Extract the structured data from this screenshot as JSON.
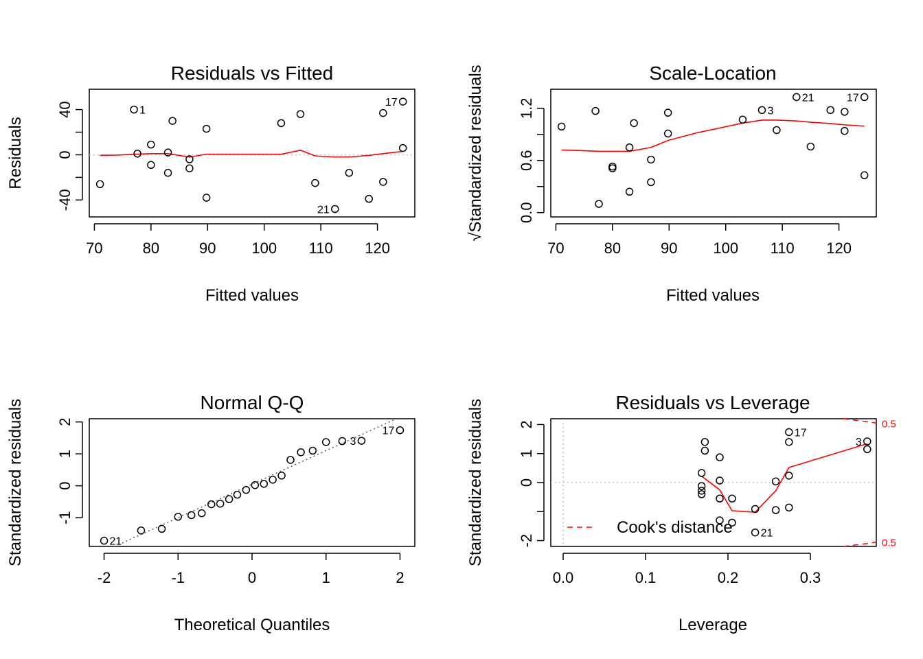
{
  "chart_data": [
    {
      "id": "rvf",
      "type": "scatter",
      "title": "Residuals vs Fitted",
      "xlabel": "Fitted values",
      "ylabel": "Residuals",
      "xlim": [
        69.1,
        126.6
      ],
      "ylim": [
        -55.0,
        58.0
      ],
      "xticks": [
        70,
        80,
        90,
        100,
        110,
        120
      ],
      "xtick_labels": [
        "70",
        "80",
        "90",
        "100",
        "110",
        "120"
      ],
      "yticks": [
        40,
        20,
        0,
        -20,
        -40
      ],
      "ytick_labels": [
        "40",
        "",
        "0",
        "",
        "-40"
      ],
      "refline": {
        "type": "h",
        "value": 0,
        "style": "gray-dotted"
      },
      "points": [
        {
          "x": 71.0,
          "y": -26
        },
        {
          "x": 77.0,
          "y": 40
        },
        {
          "x": 77.6,
          "y": 1
        },
        {
          "x": 80.0,
          "y": 9
        },
        {
          "x": 80.0,
          "y": -9
        },
        {
          "x": 83.0,
          "y": 2
        },
        {
          "x": 83.0,
          "y": -16
        },
        {
          "x": 83.8,
          "y": 30
        },
        {
          "x": 86.8,
          "y": -4
        },
        {
          "x": 86.8,
          "y": -12
        },
        {
          "x": 89.8,
          "y": 23
        },
        {
          "x": 89.8,
          "y": -38
        },
        {
          "x": 103.0,
          "y": 28
        },
        {
          "x": 106.4,
          "y": 36
        },
        {
          "x": 109.0,
          "y": -25
        },
        {
          "x": 112.5,
          "y": -48
        },
        {
          "x": 115.0,
          "y": -16
        },
        {
          "x": 118.5,
          "y": -39
        },
        {
          "x": 121.0,
          "y": 37
        },
        {
          "x": 121.0,
          "y": -24
        },
        {
          "x": 124.5,
          "y": 47
        },
        {
          "x": 124.5,
          "y": 6
        }
      ],
      "point_labels": [
        {
          "text": "1",
          "x": 77.0,
          "y": 40,
          "side": "right"
        },
        {
          "text": "17",
          "x": 124.5,
          "y": 47,
          "side": "left"
        },
        {
          "text": "21",
          "x": 112.5,
          "y": -48,
          "side": "left"
        }
      ],
      "smooth": {
        "x": [
          71.0,
          74,
          77,
          80,
          83,
          86.8,
          89.8,
          95,
          103,
          106.4,
          109,
          112.5,
          115,
          118.5,
          121,
          124.5
        ],
        "y": [
          -0.5,
          -0.3,
          0.5,
          1,
          1,
          -2,
          0.5,
          0.5,
          0.5,
          4,
          -1,
          -2,
          -2,
          -0.5,
          1,
          3
        ]
      }
    },
    {
      "id": "sl",
      "type": "scatter",
      "title": "Scale-Location",
      "xlabel": "Fitted values",
      "ylabel": "Standardized residuals",
      "ylabel_prefix": "√",
      "xlim": [
        69.1,
        126.6
      ],
      "ylim": [
        -0.05,
        1.42
      ],
      "xticks": [
        70,
        80,
        90,
        100,
        110,
        120
      ],
      "xtick_labels": [
        "70",
        "80",
        "90",
        "100",
        "110",
        "120"
      ],
      "yticks": [
        0.0,
        0.3,
        0.6,
        0.9,
        1.2
      ],
      "ytick_labels": [
        "0.0",
        "",
        "0.6",
        "",
        "1.2"
      ],
      "points": [
        {
          "x": 71.0,
          "y": 0.99
        },
        {
          "x": 77.0,
          "y": 1.17
        },
        {
          "x": 77.6,
          "y": 0.1
        },
        {
          "x": 80.0,
          "y": 0.53
        },
        {
          "x": 80.0,
          "y": 0.51
        },
        {
          "x": 83.0,
          "y": 0.75
        },
        {
          "x": 83.0,
          "y": 0.24
        },
        {
          "x": 83.8,
          "y": 1.03
        },
        {
          "x": 86.8,
          "y": 0.61
        },
        {
          "x": 86.8,
          "y": 0.35
        },
        {
          "x": 89.8,
          "y": 1.15
        },
        {
          "x": 89.8,
          "y": 0.91
        },
        {
          "x": 103.0,
          "y": 1.07
        },
        {
          "x": 106.4,
          "y": 1.18
        },
        {
          "x": 109.0,
          "y": 0.95
        },
        {
          "x": 112.5,
          "y": 1.33
        },
        {
          "x": 115.0,
          "y": 0.76
        },
        {
          "x": 118.5,
          "y": 1.18
        },
        {
          "x": 121.0,
          "y": 1.16
        },
        {
          "x": 121.0,
          "y": 0.94
        },
        {
          "x": 124.5,
          "y": 1.33
        },
        {
          "x": 124.5,
          "y": 0.43
        }
      ],
      "point_labels": [
        {
          "text": "3",
          "x": 106.4,
          "y": 1.18,
          "side": "right"
        },
        {
          "text": "21",
          "x": 112.5,
          "y": 1.33,
          "side": "right"
        },
        {
          "text": "17",
          "x": 124.5,
          "y": 1.33,
          "side": "left"
        }
      ],
      "smooth": {
        "x": [
          71.0,
          74,
          77.6,
          80,
          83,
          86.8,
          89.8,
          95,
          103,
          106.4,
          109,
          112.5,
          115,
          118.5,
          121,
          124.5
        ],
        "y": [
          0.72,
          0.715,
          0.705,
          0.705,
          0.705,
          0.75,
          0.83,
          0.92,
          1.03,
          1.065,
          1.065,
          1.055,
          1.04,
          1.025,
          1.01,
          0.995
        ]
      }
    },
    {
      "id": "qq",
      "type": "scatter",
      "title": "Normal Q-Q",
      "xlabel": "Theoretical Quantiles",
      "ylabel": "Standardized residuals",
      "xlim": [
        -2.2,
        2.2
      ],
      "ylim": [
        -1.9,
        2.1
      ],
      "xticks": [
        -2,
        -1,
        0,
        1,
        2
      ],
      "xtick_labels": [
        "-2",
        "-1",
        "0",
        "1",
        "2"
      ],
      "yticks": [
        2,
        1,
        0,
        -1
      ],
      "ytick_labels": [
        "2",
        "1",
        "0",
        "-1"
      ],
      "refline": {
        "type": "abline",
        "intercept": 0.05,
        "slope": 1.05,
        "style": "gray-dotted"
      },
      "points": [
        {
          "x": -2.0,
          "y": -1.72
        },
        {
          "x": -1.5,
          "y": -1.4
        },
        {
          "x": -1.22,
          "y": -1.35
        },
        {
          "x": -1.0,
          "y": -0.97
        },
        {
          "x": -0.82,
          "y": -0.92
        },
        {
          "x": -0.68,
          "y": -0.86
        },
        {
          "x": -0.55,
          "y": -0.58
        },
        {
          "x": -0.43,
          "y": -0.56
        },
        {
          "x": -0.31,
          "y": -0.42
        },
        {
          "x": -0.2,
          "y": -0.28
        },
        {
          "x": -0.08,
          "y": -0.13
        },
        {
          "x": 0.04,
          "y": 0.02
        },
        {
          "x": 0.16,
          "y": 0.06
        },
        {
          "x": 0.28,
          "y": 0.19
        },
        {
          "x": 0.4,
          "y": 0.32
        },
        {
          "x": 0.52,
          "y": 0.81
        },
        {
          "x": 0.66,
          "y": 1.05
        },
        {
          "x": 0.82,
          "y": 1.1
        },
        {
          "x": 1.0,
          "y": 1.37
        },
        {
          "x": 1.22,
          "y": 1.4
        },
        {
          "x": 1.48,
          "y": 1.41
        },
        {
          "x": 2.0,
          "y": 1.74
        }
      ],
      "point_labels": [
        {
          "text": "21",
          "x": -2.0,
          "y": -1.72,
          "side": "right"
        },
        {
          "text": "3",
          "x": 1.48,
          "y": 1.41,
          "side": "left"
        },
        {
          "text": "17",
          "x": 2.0,
          "y": 1.74,
          "side": "left"
        }
      ]
    },
    {
      "id": "rvl",
      "type": "scatter",
      "title": "Residuals vs Leverage",
      "xlabel": "Leverage",
      "ylabel": "Standardized residuals",
      "xlim": [
        -0.015,
        0.38
      ],
      "ylim": [
        -2.2,
        2.2
      ],
      "xticks": [
        0.0,
        0.1,
        0.2,
        0.3
      ],
      "xtick_labels": [
        "0.0",
        "0.1",
        "0.2",
        "0.3"
      ],
      "yticks": [
        2,
        1,
        0,
        -1,
        -2
      ],
      "ytick_labels": [
        "2",
        "1",
        "0",
        "",
        "-2"
      ],
      "reflines": [
        {
          "type": "h",
          "value": 0,
          "style": "gray-dotted"
        },
        {
          "type": "v",
          "value": 0,
          "style": "gray-dotted"
        }
      ],
      "points": [
        {
          "x": 0.168,
          "y": 0.33
        },
        {
          "x": 0.168,
          "y": -0.12
        },
        {
          "x": 0.168,
          "y": -0.4
        },
        {
          "x": 0.168,
          "y": -0.28
        },
        {
          "x": 0.172,
          "y": 1.4
        },
        {
          "x": 0.172,
          "y": 1.1
        },
        {
          "x": 0.19,
          "y": 0.87
        },
        {
          "x": 0.19,
          "y": 0.07
        },
        {
          "x": 0.19,
          "y": -0.55
        },
        {
          "x": 0.19,
          "y": -1.3
        },
        {
          "x": 0.205,
          "y": -0.55
        },
        {
          "x": 0.205,
          "y": -1.38
        },
        {
          "x": 0.233,
          "y": -0.91
        },
        {
          "x": 0.233,
          "y": -1.72
        },
        {
          "x": 0.258,
          "y": 0.04
        },
        {
          "x": 0.258,
          "y": -0.95
        },
        {
          "x": 0.274,
          "y": 1.74
        },
        {
          "x": 0.274,
          "y": 1.4
        },
        {
          "x": 0.274,
          "y": 0.24
        },
        {
          "x": 0.274,
          "y": -0.86
        },
        {
          "x": 0.369,
          "y": 1.42
        },
        {
          "x": 0.369,
          "y": 1.15
        }
      ],
      "point_labels": [
        {
          "text": "17",
          "x": 0.274,
          "y": 1.74,
          "side": "right"
        },
        {
          "text": "3",
          "x": 0.369,
          "y": 1.42,
          "side": "left"
        },
        {
          "text": "21",
          "x": 0.233,
          "y": -1.72,
          "side": "right"
        }
      ],
      "smooth": {
        "x": [
          0.168,
          0.19,
          0.205,
          0.233,
          0.258,
          0.274,
          0.369
        ],
        "y": [
          0.22,
          -0.25,
          -0.97,
          -1.02,
          -0.28,
          0.52,
          1.34
        ]
      },
      "cook_contour": {
        "level_label": "0.5",
        "upper": {
          "x": [
            0.34,
            0.355,
            0.369,
            0.38
          ],
          "y": [
            2.2,
            2.15,
            2.1,
            2.05
          ]
        },
        "lower": {
          "x": [
            0.34,
            0.355,
            0.369,
            0.38
          ],
          "y": [
            -2.2,
            -2.15,
            -2.1,
            -2.05
          ]
        }
      },
      "legend": {
        "label": "Cook's distance",
        "placement": "bottom-left",
        "color": "#ff0000"
      }
    }
  ],
  "colors": {
    "points": "#000000",
    "smooth": "#ff0000",
    "refline": "#bebebe",
    "qqline": "#555555",
    "axis": "#000000"
  }
}
